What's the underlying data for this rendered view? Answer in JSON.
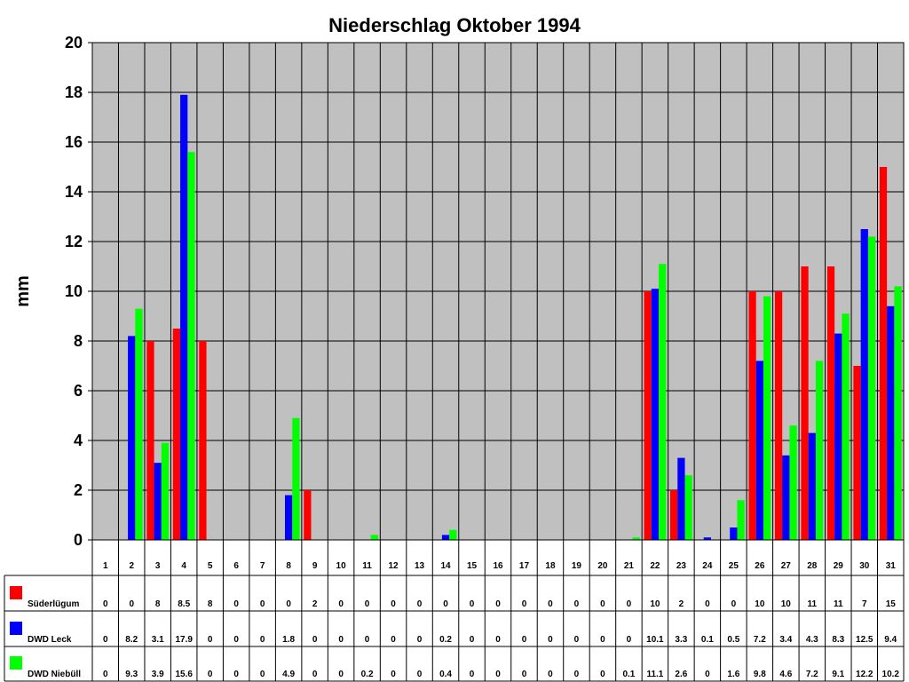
{
  "chart_data": {
    "type": "bar",
    "title": "Niederschlag Oktober 1994",
    "xlabel": "",
    "ylabel": "mm",
    "ylim": [
      0,
      20
    ],
    "yticks": [
      "0",
      "2",
      "4",
      "6",
      "8",
      "10",
      "12",
      "14",
      "16",
      "18",
      "20"
    ],
    "grid": true,
    "legend": "data-table",
    "categories": [
      "1",
      "2",
      "3",
      "4",
      "5",
      "6",
      "7",
      "8",
      "9",
      "10",
      "11",
      "12",
      "13",
      "14",
      "15",
      "16",
      "17",
      "18",
      "19",
      "20",
      "21",
      "22",
      "23",
      "24",
      "25",
      "26",
      "27",
      "28",
      "29",
      "30",
      "31"
    ],
    "series": [
      {
        "name": "Süderlügum",
        "color": "#ff0000",
        "values": [
          0,
          0,
          8,
          8.5,
          8,
          0,
          0,
          0,
          2,
          0,
          0,
          0,
          0,
          0,
          0,
          0,
          0,
          0,
          0,
          0,
          0,
          10,
          2,
          0,
          0,
          10,
          10,
          11,
          11,
          7,
          15
        ],
        "labels": [
          "0",
          "0",
          "8",
          "8.5",
          "8",
          "0",
          "0",
          "0",
          "2",
          "0",
          "0",
          "0",
          "0",
          "0",
          "0",
          "0",
          "0",
          "0",
          "0",
          "0",
          "0",
          "10",
          "2",
          "0",
          "0",
          "10",
          "10",
          "11",
          "11",
          "7",
          "15"
        ]
      },
      {
        "name": "DWD Leck",
        "color": "#0000ff",
        "values": [
          0,
          8.2,
          3.1,
          17.9,
          0,
          0,
          0,
          1.8,
          0,
          0,
          0,
          0,
          0,
          0.2,
          0,
          0,
          0,
          0,
          0,
          0,
          0,
          10.1,
          3.3,
          0.1,
          0.5,
          7.2,
          3.4,
          4.3,
          8.3,
          12.5,
          9.4
        ],
        "labels": [
          "0",
          "8.2",
          "3.1",
          "17.9",
          "0",
          "0",
          "0",
          "1.8",
          "0",
          "0",
          "0",
          "0",
          "0",
          "0.2",
          "0",
          "0",
          "0",
          "0",
          "0",
          "0",
          "0",
          "10.1",
          "3.3",
          "0.1",
          "0.5",
          "7.2",
          "3.4",
          "4.3",
          "8.3",
          "12.5",
          "9.4"
        ]
      },
      {
        "name": "DWD Niebüll",
        "color": "#00ff00",
        "values": [
          0,
          9.3,
          3.9,
          15.6,
          0,
          0,
          0,
          4.9,
          0,
          0,
          0.2,
          0,
          0,
          0.4,
          0,
          0,
          0,
          0,
          0,
          0,
          0.1,
          11.1,
          2.6,
          0,
          1.6,
          9.8,
          4.6,
          7.2,
          9.1,
          12.2,
          10.2
        ],
        "labels": [
          "0",
          "9.3",
          "3.9",
          "15.6",
          "0",
          "0",
          "0",
          "4.9",
          "0",
          "0",
          "0.2",
          "0",
          "0",
          "0.4",
          "0",
          "0",
          "0",
          "0",
          "0",
          "0",
          "0.1",
          "11.1",
          "2.6",
          "0",
          "1.6",
          "9.8",
          "4.6",
          "7.2",
          "9.1",
          "12.2",
          "10.2"
        ]
      }
    ]
  }
}
